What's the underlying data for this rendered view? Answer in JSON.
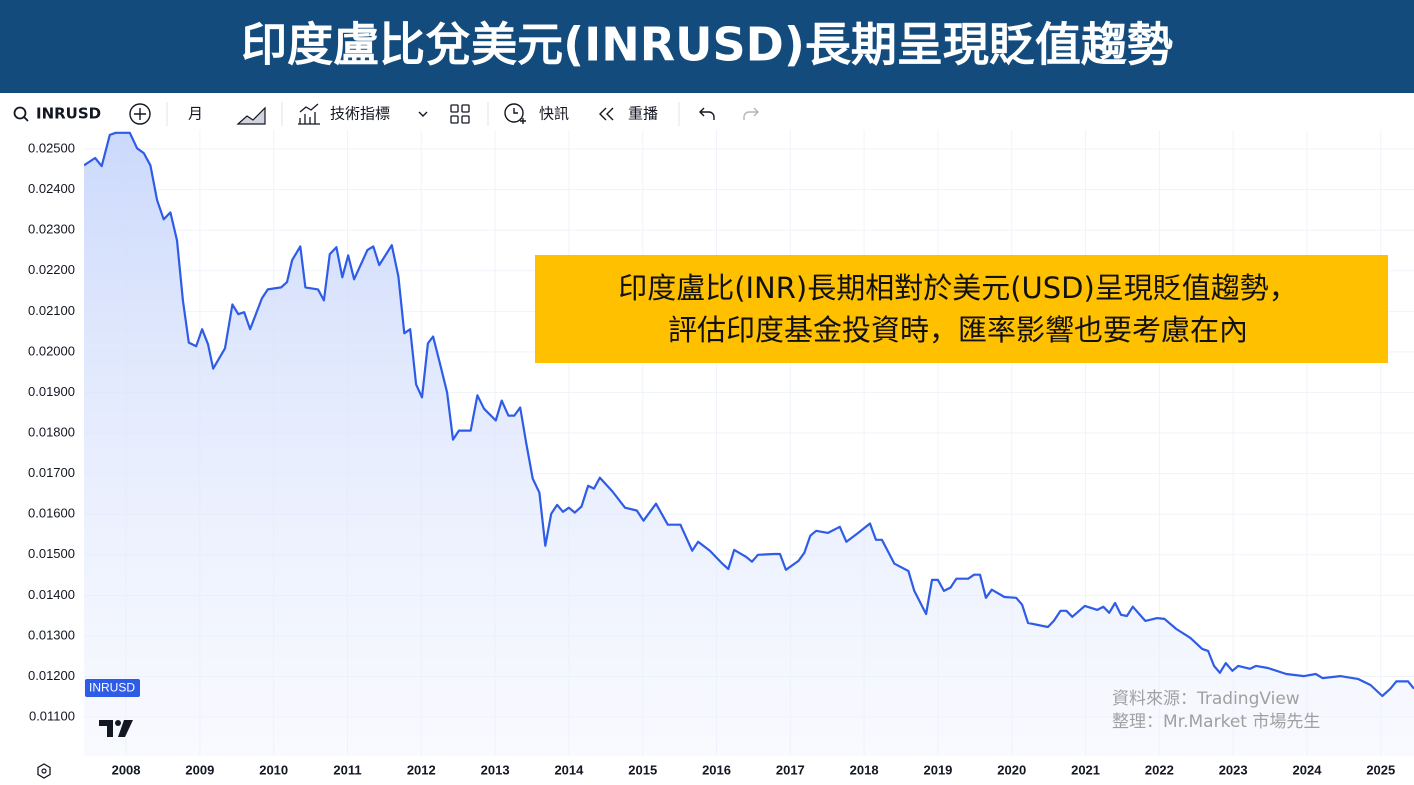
{
  "toolbar": {
    "symbol": "INRUSD",
    "interval": "月",
    "indicators": "技術指標",
    "alerts": "快訊",
    "replay": "重播"
  },
  "chart_data": {
    "type": "line",
    "title": "印度盧比兌美元(INRUSD)長期呈現貶值趨勢",
    "annotation": [
      "印度盧比(INR)長期相對於美元(USD)呈現貶值趨勢，",
      "評估印度基金投資時，匯率影響也要考慮在內"
    ],
    "source": [
      "資料來源：TradingView",
      "整理：Mr.Market 市場先生"
    ],
    "x": [
      2007.43,
      2007.58,
      2007.67,
      2007.78,
      2007.86,
      2008.05,
      2008.15,
      2008.24,
      2008.33,
      2008.42,
      2008.51,
      2008.6,
      2008.69,
      2008.77,
      2008.85,
      2008.95,
      2009.03,
      2009.11,
      2009.18,
      2009.34,
      2009.44,
      2009.52,
      2009.6,
      2009.68,
      2009.84,
      2009.92,
      2010.1,
      2010.18,
      2010.25,
      2010.36,
      2010.43,
      2010.6,
      2010.68,
      2010.76,
      2010.85,
      2010.93,
      2011.01,
      2011.09,
      2011.27,
      2011.35,
      2011.43,
      2011.6,
      2011.69,
      2011.77,
      2011.85,
      2011.93,
      2012.01,
      2012.09,
      2012.16,
      2012.25,
      2012.35,
      2012.43,
      2012.51,
      2012.67,
      2012.76,
      2012.85,
      2013.01,
      2013.09,
      2013.18,
      2013.26,
      2013.34,
      2013.42,
      2013.51,
      2013.6,
      2013.68,
      2013.76,
      2013.84,
      2013.92,
      2014.0,
      2014.08,
      2014.17,
      2014.26,
      2014.34,
      2014.42,
      2014.59,
      2014.76,
      2014.92,
      2015.01,
      2015.18,
      2015.34,
      2015.51,
      2015.67,
      2015.75,
      2015.91,
      2016.08,
      2016.16,
      2016.24,
      2016.4,
      2016.48,
      2016.56,
      2016.78,
      2016.86,
      2016.94,
      2017.11,
      2017.19,
      2017.27,
      2017.35,
      2017.51,
      2017.67,
      2017.76,
      2017.92,
      2018.08,
      2018.16,
      2018.24,
      2018.41,
      2018.6,
      2018.68,
      2018.84,
      2018.92,
      2019.0,
      2019.08,
      2019.17,
      2019.25,
      2019.41,
      2019.49,
      2019.57,
      2019.65,
      2019.73,
      2019.9,
      2020.06,
      2020.14,
      2020.22,
      2020.49,
      2020.57,
      2020.66,
      2020.74,
      2020.82,
      2020.99,
      2021.16,
      2021.24,
      2021.32,
      2021.4,
      2021.48,
      2021.56,
      2021.64,
      2021.81,
      2021.97,
      2022.07,
      2022.23,
      2022.42,
      2022.58,
      2022.66,
      2022.74,
      2022.82,
      2022.9,
      2022.99,
      2023.07,
      2023.23,
      2023.31,
      2023.47,
      2023.72,
      2023.96,
      2024.12,
      2024.21,
      2024.45,
      2024.69,
      2024.86,
      2025.02,
      2025.13,
      2025.21,
      2025.37,
      2025.45
    ],
    "series": [
      {
        "name": "INRUSD",
        "color": "#2e5ce6",
        "values": [
          0.0246,
          0.02478,
          0.02458,
          0.02535,
          0.0254,
          0.0254,
          0.02502,
          0.0249,
          0.0246,
          0.02374,
          0.02327,
          0.02344,
          0.02275,
          0.02127,
          0.02023,
          0.02014,
          0.02056,
          0.02019,
          0.01959,
          0.02009,
          0.02117,
          0.02093,
          0.02098,
          0.02056,
          0.02132,
          0.02154,
          0.02159,
          0.02172,
          0.02226,
          0.0226,
          0.02159,
          0.02154,
          0.02127,
          0.02241,
          0.02258,
          0.02184,
          0.02238,
          0.02179,
          0.02251,
          0.0226,
          0.02214,
          0.02263,
          0.02186,
          0.02046,
          0.02056,
          0.0192,
          0.01888,
          0.02021,
          0.02038,
          0.01974,
          0.019,
          0.01784,
          0.01806,
          0.01806,
          0.01893,
          0.0186,
          0.01831,
          0.0188,
          0.01843,
          0.01843,
          0.01863,
          0.01777,
          0.01688,
          0.01653,
          0.01522,
          0.01601,
          0.01623,
          0.01606,
          0.01616,
          0.01604,
          0.01619,
          0.0167,
          0.01663,
          0.0169,
          0.01656,
          0.01616,
          0.01609,
          0.01584,
          0.01626,
          0.01574,
          0.01574,
          0.0151,
          0.01532,
          0.0151,
          0.01478,
          0.01465,
          0.01512,
          0.01495,
          0.01483,
          0.015,
          0.01502,
          0.01502,
          0.01463,
          0.01485,
          0.01505,
          0.01547,
          0.01559,
          0.01554,
          0.01569,
          0.01532,
          0.01554,
          0.01577,
          0.01537,
          0.01537,
          0.01478,
          0.0146,
          0.01411,
          0.01354,
          0.01438,
          0.01438,
          0.01411,
          0.01419,
          0.01441,
          0.01441,
          0.01451,
          0.01451,
          0.01394,
          0.01414,
          0.01396,
          0.01394,
          0.01377,
          0.01332,
          0.01322,
          0.01337,
          0.01362,
          0.01362,
          0.01347,
          0.01374,
          0.01364,
          0.01372,
          0.01357,
          0.01381,
          0.01352,
          0.01349,
          0.01372,
          0.01337,
          0.01344,
          0.01342,
          0.01317,
          0.01295,
          0.01268,
          0.01263,
          0.01226,
          0.01209,
          0.01233,
          0.01214,
          0.01226,
          0.01219,
          0.01226,
          0.01221,
          0.01206,
          0.01201,
          0.01206,
          0.01196,
          0.01201,
          0.01194,
          0.01179,
          0.01152,
          0.0117,
          0.01188,
          0.01188,
          0.0117
        ]
      }
    ],
    "xlim": [
      2007.43,
      2025.45
    ],
    "xticks": [
      2008,
      2009,
      2010,
      2011,
      2012,
      2013,
      2014,
      2015,
      2016,
      2017,
      2018,
      2019,
      2020,
      2021,
      2022,
      2023,
      2024,
      2025
    ],
    "ylim": [
      0.01004,
      0.02547
    ],
    "yticks": [
      {
        "value": 0.011,
        "label": "0.01100"
      },
      {
        "value": 0.012,
        "label": "0.01200"
      },
      {
        "value": 0.013,
        "label": "0.01300"
      },
      {
        "value": 0.014,
        "label": "0.01400"
      },
      {
        "value": 0.015,
        "label": "0.01500"
      },
      {
        "value": 0.016,
        "label": "0.01600"
      },
      {
        "value": 0.017,
        "label": "0.01700"
      },
      {
        "value": 0.018,
        "label": "0.01800"
      },
      {
        "value": 0.019,
        "label": "0.01900"
      },
      {
        "value": 0.02,
        "label": "0.02000"
      },
      {
        "value": 0.021,
        "label": "0.02100"
      },
      {
        "value": 0.022,
        "label": "0.02200"
      },
      {
        "value": 0.023,
        "label": "0.02300"
      },
      {
        "value": 0.024,
        "label": "0.02400"
      },
      {
        "value": 0.025,
        "label": "0.02500"
      }
    ],
    "grid": true
  }
}
